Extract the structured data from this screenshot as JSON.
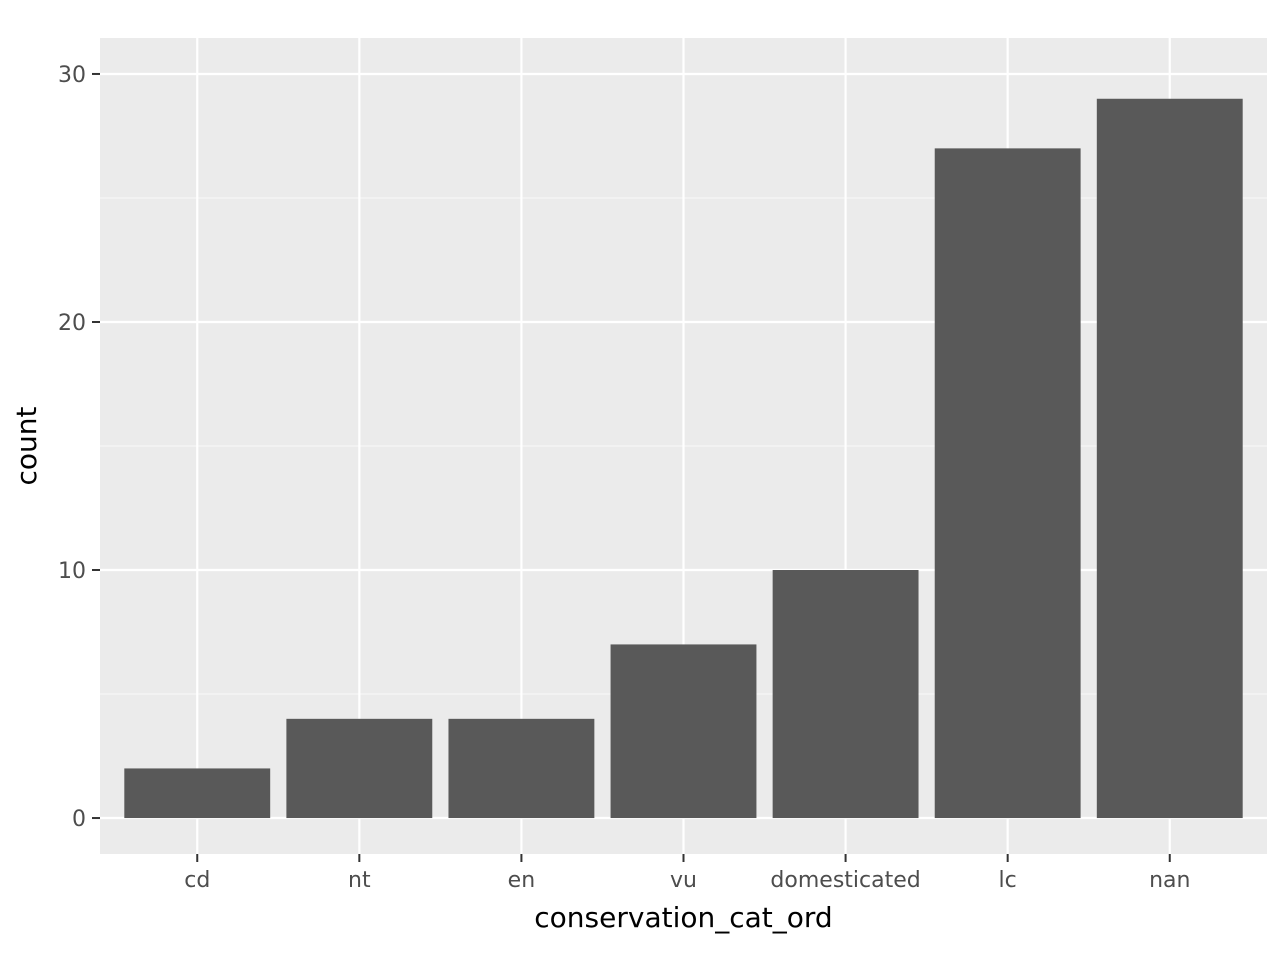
{
  "chart_data": {
    "type": "bar",
    "categories": [
      "cd",
      "nt",
      "en",
      "vu",
      "domesticated",
      "lc",
      "nan"
    ],
    "values": [
      2,
      4,
      4,
      7,
      10,
      27,
      29
    ],
    "xlabel": "conservation_cat_ord",
    "ylabel": "count",
    "ylim": [
      -1.45,
      31.45
    ],
    "yticks": [
      0,
      10,
      20,
      30
    ],
    "yticks_labels": [
      "0",
      "10",
      "20",
      "30"
    ],
    "grid": true,
    "legend": "none",
    "colors": {
      "bar": "#595959",
      "panel_background": "#ebebeb",
      "grid_major": "#ffffff",
      "grid_minor": "#f5f5f5",
      "tick_text": "#4d4d4d",
      "tick_mark": "#333333"
    }
  }
}
